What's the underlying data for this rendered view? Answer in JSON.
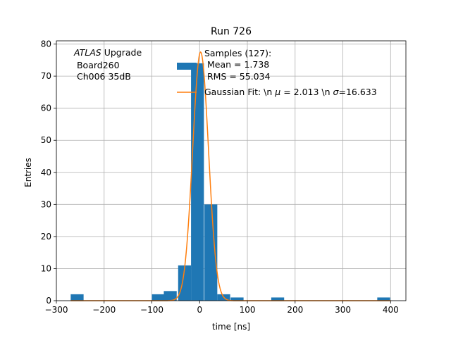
{
  "chart_data": {
    "type": "bar",
    "title": "Run 726",
    "xlabel": "time [ns]",
    "ylabel": "Entries",
    "xlim": [
      -300,
      432
    ],
    "ylim": [
      0,
      81
    ],
    "grid": true,
    "xticks": [
      -300,
      -200,
      -100,
      0,
      100,
      200,
      300,
      400
    ],
    "yticks": [
      0,
      10,
      20,
      30,
      40,
      50,
      60,
      70,
      80
    ],
    "histogram": {
      "bin_width": 27,
      "bins": [
        {
          "x0": -270,
          "value": 2
        },
        {
          "x0": -100,
          "value": 2
        },
        {
          "x0": -75,
          "value": 3
        },
        {
          "x0": -45,
          "value": 11
        },
        {
          "x0": -18,
          "value": 74
        },
        {
          "x0": 10,
          "value": 30
        },
        {
          "x0": 37,
          "value": 2
        },
        {
          "x0": 65,
          "value": 1
        },
        {
          "x0": 150,
          "value": 1
        },
        {
          "x0": 372,
          "value": 1
        }
      ]
    },
    "series": [
      {
        "name": "Samples (127):\n Mean = 1.738\n RMS = 55.034",
        "kind": "histogram",
        "color": "#1f77b4"
      },
      {
        "name": "Gaussian Fit: \\n $\\mu$ = 2.013 \\n $\\sigma$=16.633",
        "kind": "line",
        "color": "#ff7f0e",
        "amplitude": 77.5,
        "mu": 2.013,
        "sigma": 16.633
      }
    ],
    "legend": {
      "placement": "top-center",
      "hist_lines": [
        "Samples (127):",
        " Mean = 1.738",
        " RMS = 55.034"
      ],
      "fit_prefix": "Gaussian Fit: \\n ",
      "fit_mu_sym": "μ",
      "fit_mid": " = 2.013 \\n ",
      "fit_sigma_sym": "σ",
      "fit_suffix": "=16.633"
    },
    "annotation": {
      "placement": "top-left",
      "italic": "ATLAS",
      "rest": " Upgrade",
      "lines": [
        " Board260",
        " Ch006 35dB"
      ]
    }
  }
}
